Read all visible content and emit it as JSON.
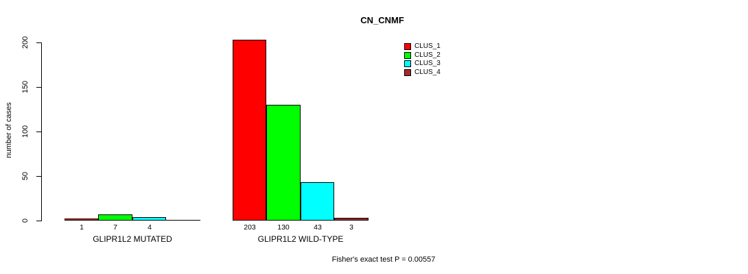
{
  "title": "CN_CNMF",
  "y_axis": {
    "label": "number of cases"
  },
  "footer": "Fisher's exact test P = 0.00557",
  "legend": {
    "items": [
      {
        "label": "CLUS_1",
        "color": "#FF0000"
      },
      {
        "label": "CLUS_2",
        "color": "#00FF00"
      },
      {
        "label": "CLUS_3",
        "color": "#00FFFF"
      },
      {
        "label": "CLUS_4",
        "color": "#A52A2A"
      }
    ]
  },
  "chart_data": {
    "type": "bar",
    "title": "CN_CNMF",
    "ylabel": "number of cases",
    "ylim": [
      0,
      203
    ],
    "yticks": [
      0,
      50,
      100,
      150,
      200
    ],
    "grid": false,
    "legend_position": "top-right",
    "series_names": [
      "CLUS_1",
      "CLUS_2",
      "CLUS_3",
      "CLUS_4"
    ],
    "series_colors": [
      "#FF0000",
      "#00FF00",
      "#00FFFF",
      "#A52A2A"
    ],
    "groups": [
      {
        "label": "GLIPR1L2 MUTATED",
        "values": [
          1,
          7,
          4,
          0
        ],
        "value_labels": [
          "1",
          "7",
          "4",
          ""
        ]
      },
      {
        "label": "GLIPR1L2 WILD-TYPE",
        "values": [
          203,
          130,
          43,
          3
        ],
        "value_labels": [
          "203",
          "130",
          "43",
          "3"
        ]
      }
    ],
    "annotation": "Fisher's exact test P = 0.00557"
  }
}
